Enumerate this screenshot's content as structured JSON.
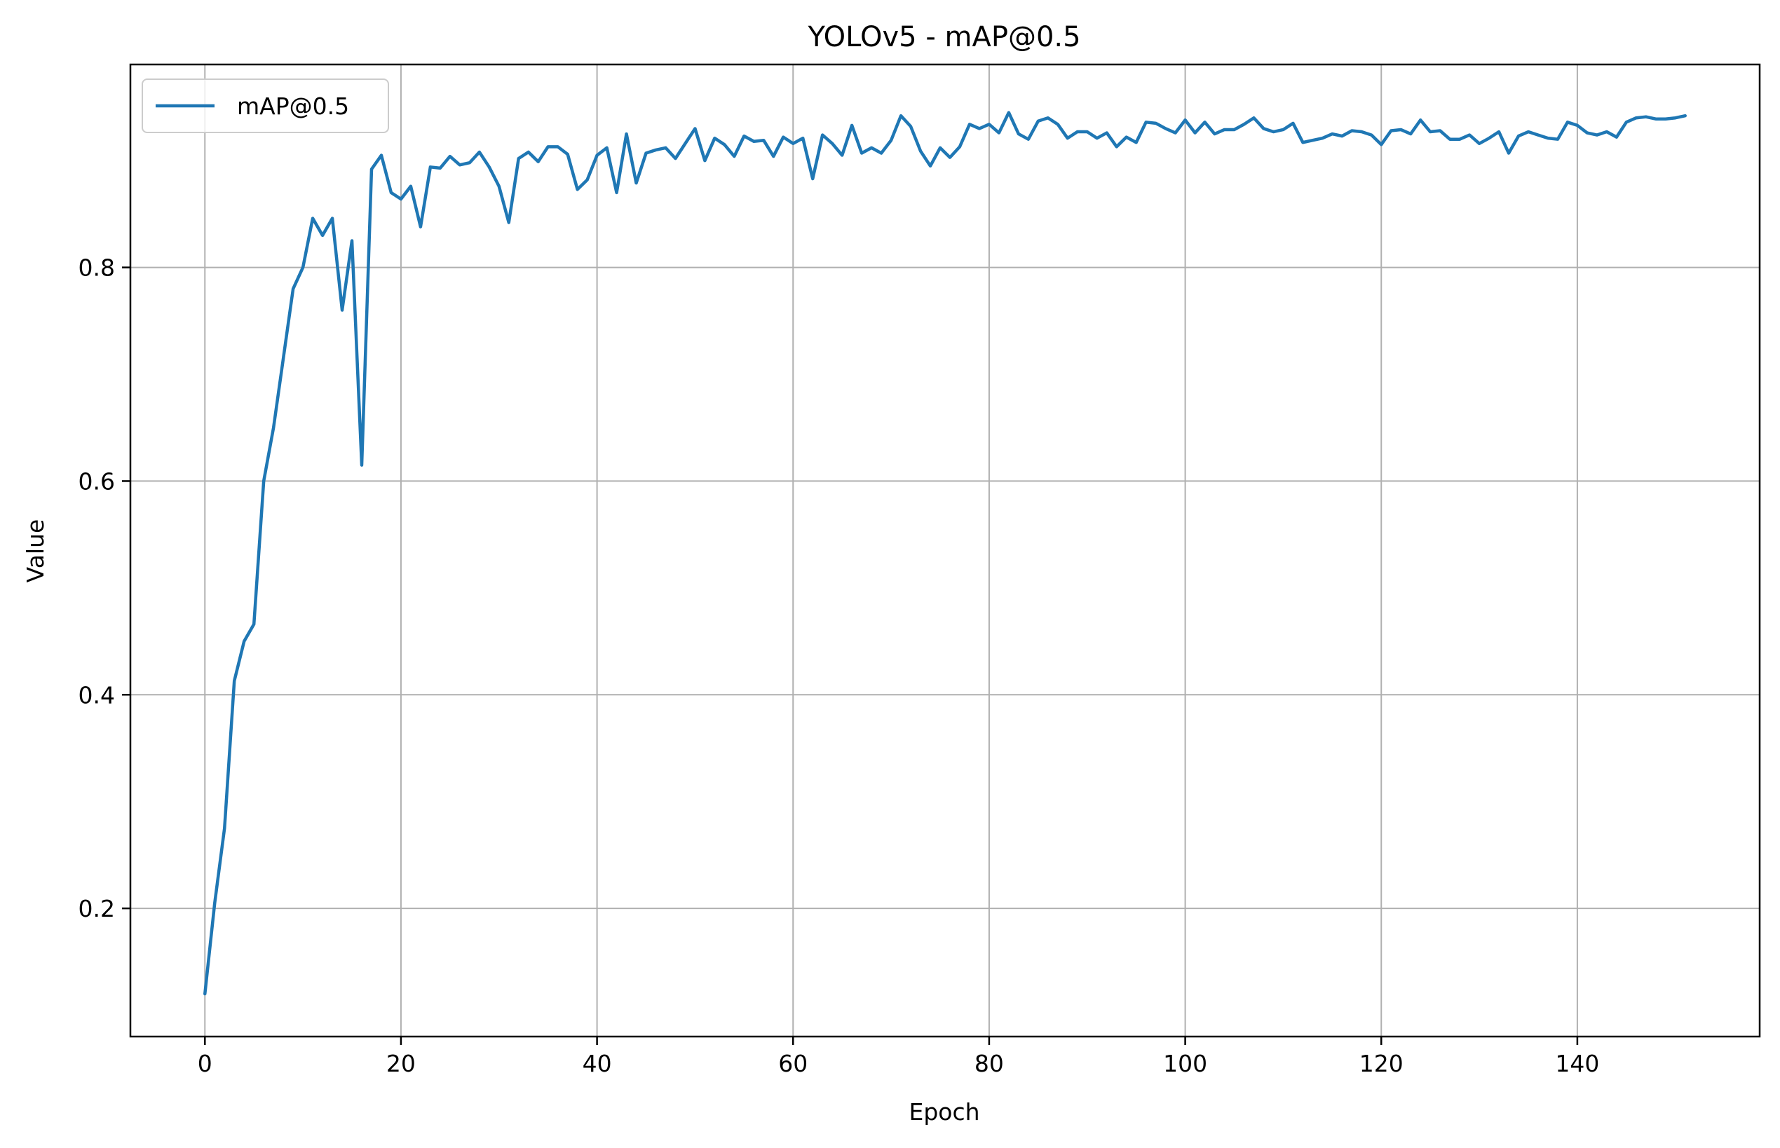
{
  "chart_data": {
    "type": "line",
    "title": "YOLOv5 - mAP@0.5",
    "xlabel": "Epoch",
    "ylabel": "Value",
    "xlim": [
      -7.6,
      158.6
    ],
    "ylim": [
      0.08,
      0.99
    ],
    "x_ticks": [
      0,
      20,
      40,
      60,
      80,
      100,
      120,
      140
    ],
    "y_ticks": [
      0.2,
      0.4,
      0.6,
      0.8
    ],
    "x_tick_labels": [
      "0",
      "20",
      "40",
      "60",
      "80",
      "100",
      "120",
      "140"
    ],
    "y_tick_labels": [
      "0.2",
      "0.4",
      "0.6",
      "0.8"
    ],
    "grid": true,
    "legend_position": "upper left",
    "colors": {
      "line": "#1f77b4",
      "grid": "#b0b0b0",
      "axes": "#000000"
    },
    "series": [
      {
        "name": "mAP@0.5",
        "x_start": 0,
        "values": [
          0.12,
          0.205,
          0.275,
          0.413,
          0.45,
          0.466,
          0.6,
          0.65,
          0.715,
          0.78,
          0.8,
          0.846,
          0.83,
          0.846,
          0.76,
          0.825,
          0.615,
          0.892,
          0.905,
          0.87,
          0.864,
          0.876,
          0.838,
          0.894,
          0.893,
          0.904,
          0.896,
          0.898,
          0.908,
          0.894,
          0.876,
          0.842,
          0.902,
          0.908,
          0.899,
          0.913,
          0.913,
          0.906,
          0.873,
          0.882,
          0.905,
          0.912,
          0.87,
          0.925,
          0.879,
          0.907,
          0.91,
          0.912,
          0.902,
          0.916,
          0.93,
          0.9,
          0.921,
          0.915,
          0.904,
          0.923,
          0.918,
          0.919,
          0.904,
          0.922,
          0.916,
          0.921,
          0.883,
          0.924,
          0.916,
          0.905,
          0.933,
          0.907,
          0.912,
          0.907,
          0.919,
          0.942,
          0.932,
          0.909,
          0.895,
          0.912,
          0.903,
          0.913,
          0.934,
          0.93,
          0.934,
          0.926,
          0.945,
          0.925,
          0.92,
          0.937,
          0.94,
          0.934,
          0.921,
          0.927,
          0.927,
          0.921,
          0.926,
          0.913,
          0.922,
          0.917,
          0.936,
          0.935,
          0.93,
          0.926,
          0.938,
          0.926,
          0.936,
          0.925,
          0.929,
          0.929,
          0.934,
          0.94,
          0.93,
          0.927,
          0.929,
          0.935,
          0.917,
          0.919,
          0.921,
          0.925,
          0.923,
          0.928,
          0.927,
          0.924,
          0.915,
          0.928,
          0.929,
          0.925,
          0.938,
          0.927,
          0.928,
          0.92,
          0.92,
          0.924,
          0.916,
          0.921,
          0.927,
          0.907,
          0.923,
          0.927,
          0.924,
          0.921,
          0.92,
          0.936,
          0.933,
          0.926,
          0.924,
          0.927,
          0.922,
          0.936,
          0.94,
          0.941,
          0.939,
          0.939,
          0.94,
          0.942
        ]
      }
    ]
  }
}
